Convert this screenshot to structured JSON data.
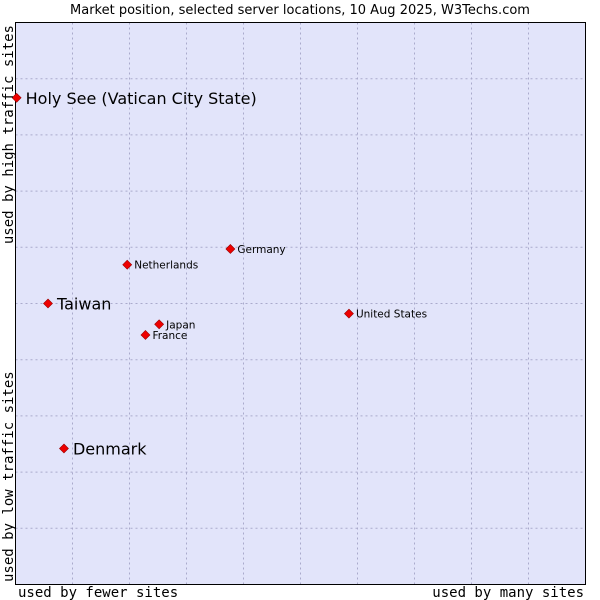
{
  "chart_data": {
    "type": "scatter",
    "title": "Market position, selected server locations, 10 Aug 2025, W3Techs.com",
    "xlabel_left": "used by fewer sites",
    "xlabel_right": "used by many sites",
    "ylabel_bottom": "used by low traffic sites",
    "ylabel_top": "used by high traffic sites",
    "xlim": [
      0,
      100
    ],
    "ylim": [
      0,
      100
    ],
    "grid": true,
    "points": [
      {
        "name": "Holy See (Vatican City State)",
        "x": 0.2,
        "y": 86.6,
        "highlight": true
      },
      {
        "name": "Germany",
        "x": 37.7,
        "y": 59.7,
        "highlight": false
      },
      {
        "name": "Netherlands",
        "x": 19.6,
        "y": 56.9,
        "highlight": false
      },
      {
        "name": "Taiwan",
        "x": 5.7,
        "y": 50.0,
        "highlight": true
      },
      {
        "name": "United States",
        "x": 58.5,
        "y": 48.2,
        "highlight": false
      },
      {
        "name": "Japan",
        "x": 25.2,
        "y": 46.3,
        "highlight": false
      },
      {
        "name": "France",
        "x": 22.8,
        "y": 44.4,
        "highlight": false
      },
      {
        "name": "Denmark",
        "x": 8.5,
        "y": 24.2,
        "highlight": true
      }
    ]
  },
  "colors": {
    "plot_bg": "#e2e4fa",
    "grid": "#aaaacc",
    "border": "#000000",
    "marker": "#ee0000",
    "marker_edge": "#990000"
  }
}
